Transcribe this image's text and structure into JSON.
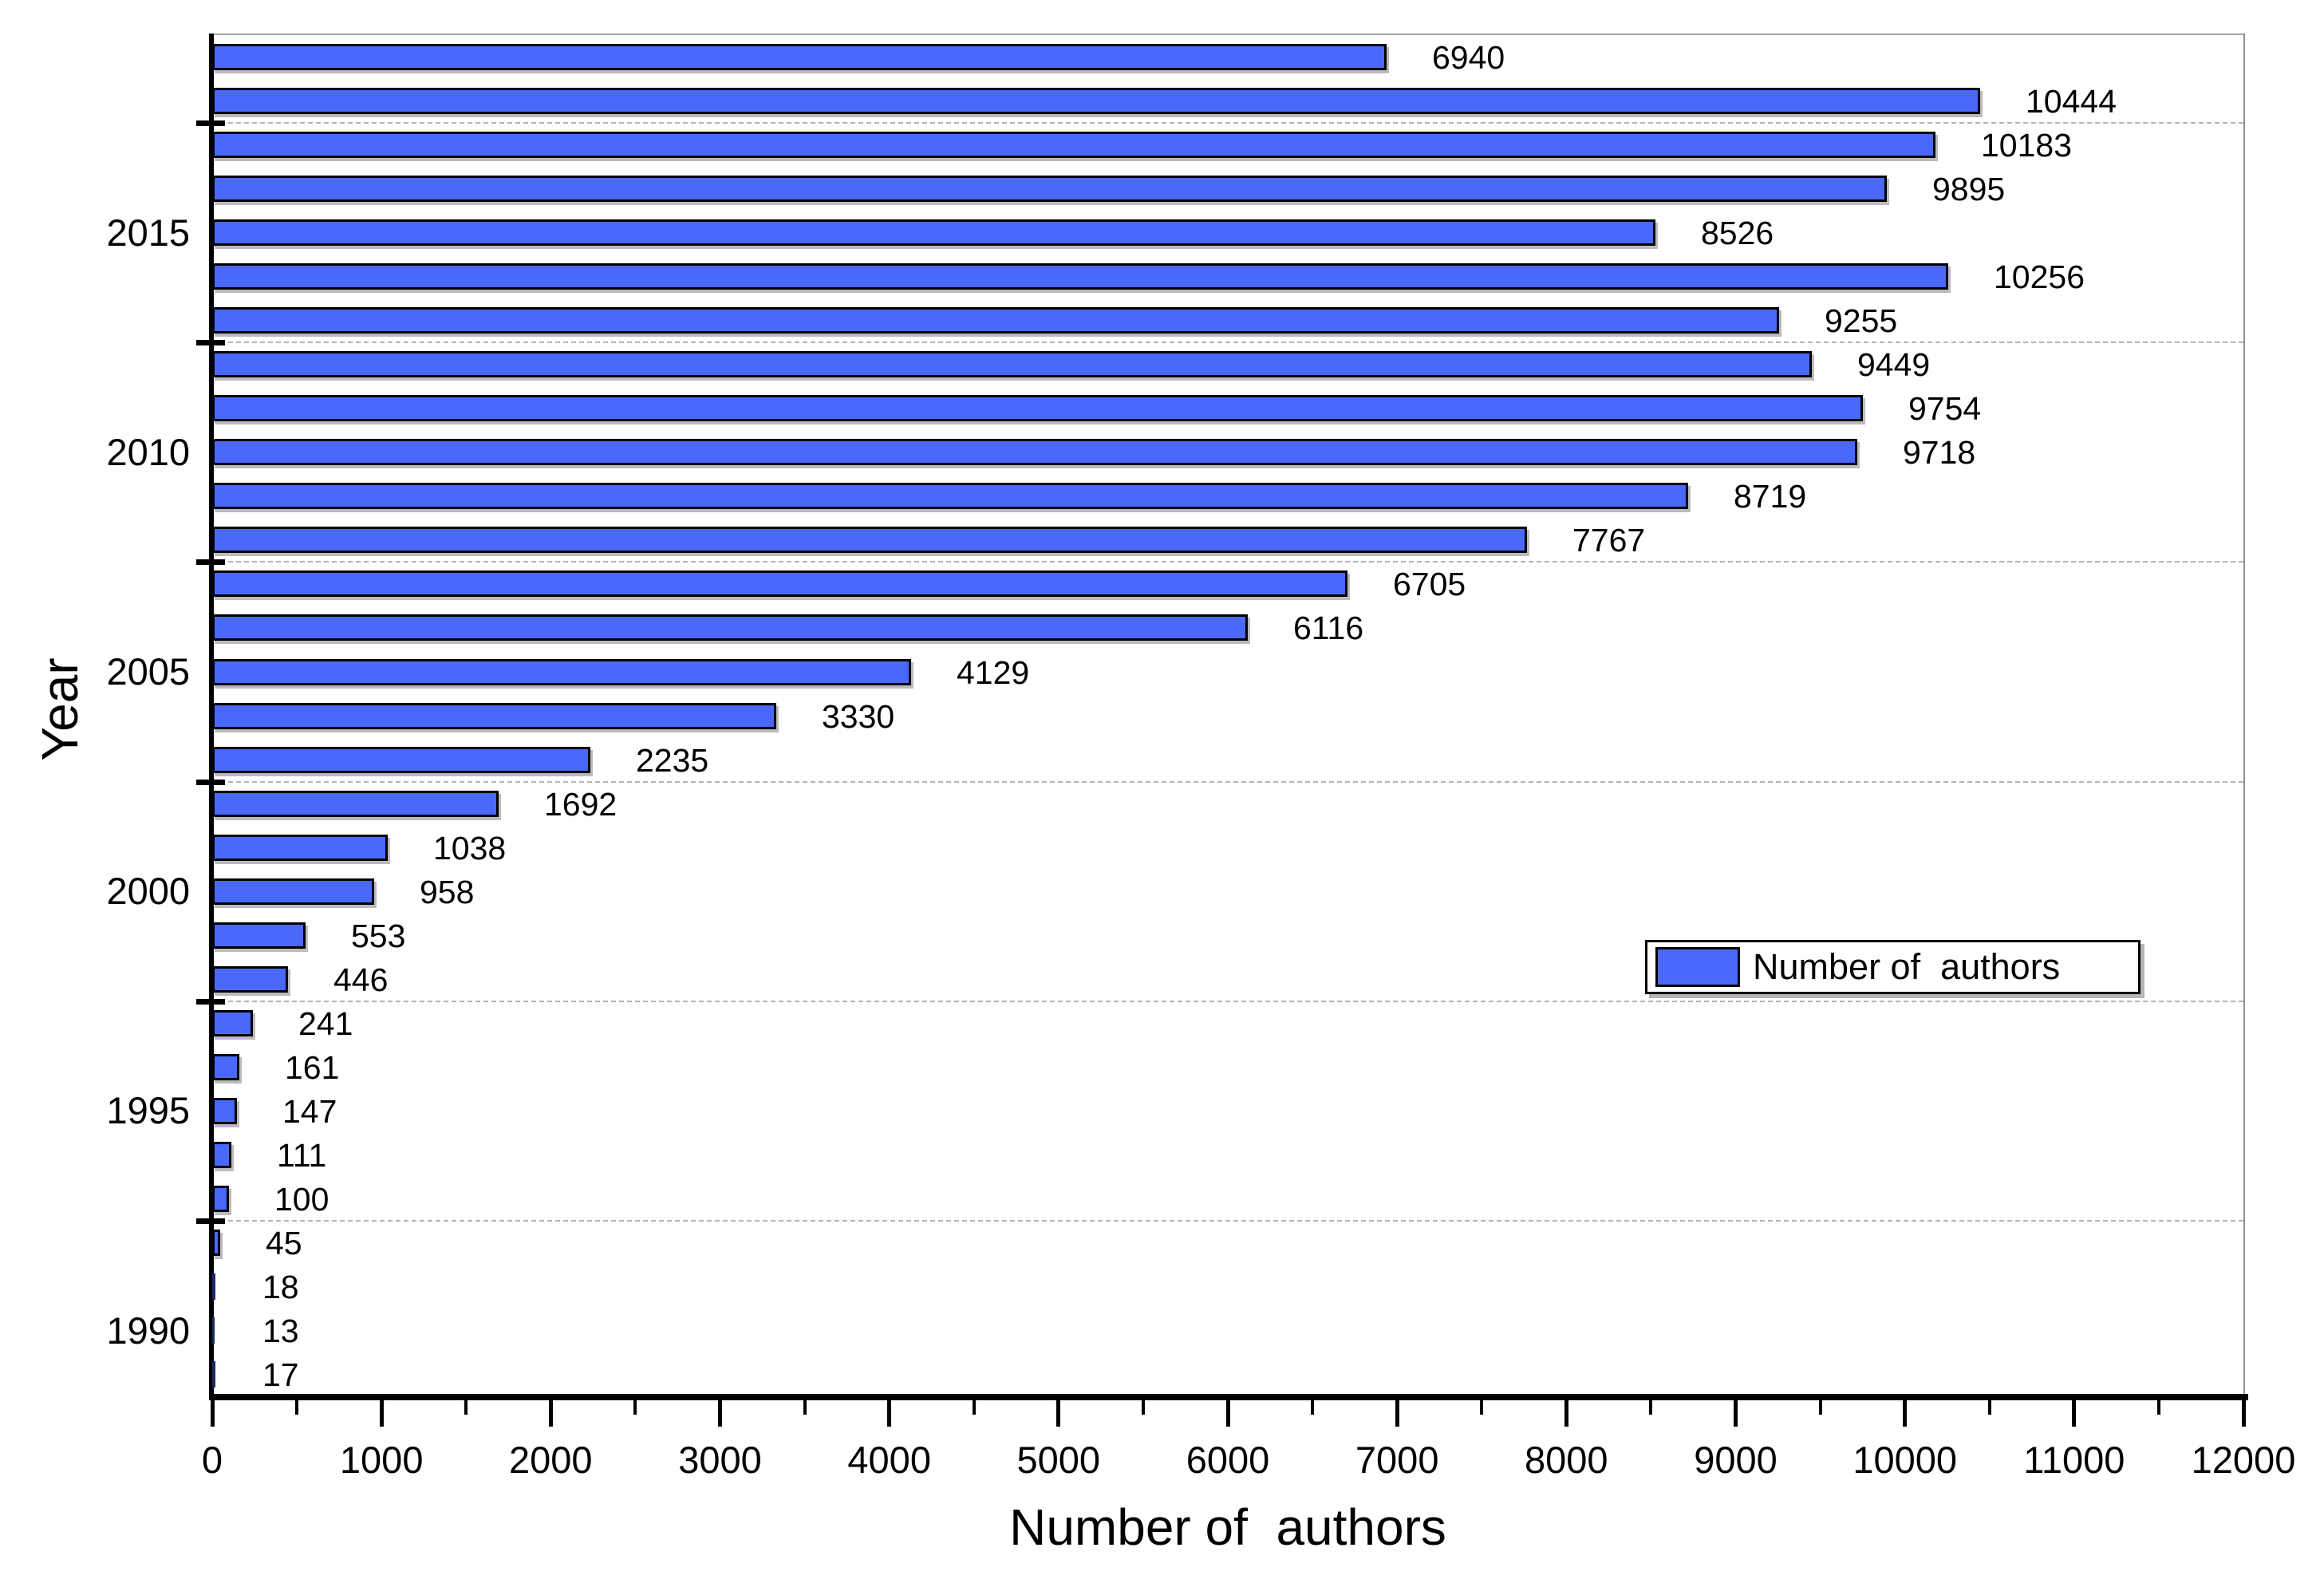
{
  "chart_data": {
    "type": "bar",
    "orientation": "horizontal",
    "xlabel": "Number of  authors",
    "ylabel": "Year",
    "xlim": [
      0,
      12000
    ],
    "x_major_tick_step": 1000,
    "x_minor_tick_step": 500,
    "x_tick_labels": [
      "0",
      "1000",
      "2000",
      "3000",
      "4000",
      "5000",
      "6000",
      "7000",
      "8000",
      "9000",
      "10000",
      "11000",
      "12000"
    ],
    "ylim": [
      1988.5,
      2019.5
    ],
    "y_labeled_years": [
      2015,
      2010,
      2005,
      2000,
      1995,
      1990
    ],
    "gridline_years": [
      2017.5,
      2012.5,
      2007.5,
      2002.5,
      1997.5,
      1992.5
    ],
    "grid_style": "dashed-horizontal",
    "legend": {
      "label": "Number of  authors",
      "position": "middle-right"
    },
    "bar_color": "#4a69fb",
    "bar_border_color": "#000000",
    "series": [
      {
        "name": "Number of authors",
        "points": [
          {
            "year": 2019,
            "value": 6940
          },
          {
            "year": 2018,
            "value": 10444
          },
          {
            "year": 2017,
            "value": 10183
          },
          {
            "year": 2016,
            "value": 9895
          },
          {
            "year": 2015,
            "value": 8526
          },
          {
            "year": 2014,
            "value": 10256
          },
          {
            "year": 2013,
            "value": 9255
          },
          {
            "year": 2012,
            "value": 9449
          },
          {
            "year": 2011,
            "value": 9754
          },
          {
            "year": 2010,
            "value": 9718
          },
          {
            "year": 2009,
            "value": 8719
          },
          {
            "year": 2008,
            "value": 7767
          },
          {
            "year": 2007,
            "value": 6705
          },
          {
            "year": 2006,
            "value": 6116
          },
          {
            "year": 2005,
            "value": 4129
          },
          {
            "year": 2004,
            "value": 3330
          },
          {
            "year": 2003,
            "value": 2235
          },
          {
            "year": 2002,
            "value": 1692
          },
          {
            "year": 2001,
            "value": 1038
          },
          {
            "year": 2000,
            "value": 958
          },
          {
            "year": 1999,
            "value": 553
          },
          {
            "year": 1998,
            "value": 446
          },
          {
            "year": 1997,
            "value": 241
          },
          {
            "year": 1996,
            "value": 161
          },
          {
            "year": 1995,
            "value": 147
          },
          {
            "year": 1994,
            "value": 111
          },
          {
            "year": 1993,
            "value": 100
          },
          {
            "year": 1992,
            "value": 45
          },
          {
            "year": 1991,
            "value": 18
          },
          {
            "year": 1990,
            "value": 13
          },
          {
            "year": 1989,
            "value": 17
          }
        ]
      }
    ]
  },
  "titles": {
    "x_axis": "Number of  authors",
    "y_axis": "Year"
  },
  "legend": {
    "label": "Number of  authors",
    "swatch_color": "#4a69fb"
  }
}
